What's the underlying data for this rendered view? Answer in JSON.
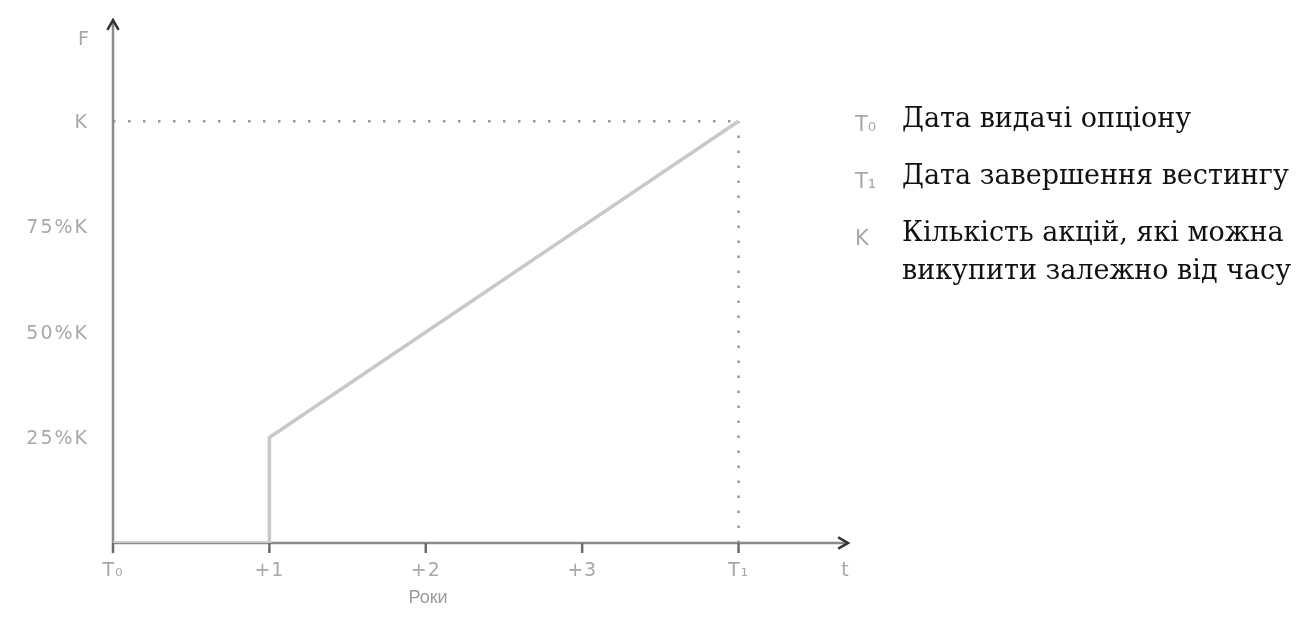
{
  "chart_data": {
    "type": "line",
    "xlabel": "t",
    "ylabel": "F",
    "annotations": [
      "Роки",
      "T₀ Дата видачі опціону",
      "T₁ Дата завершення вестингу",
      "K Кількість акцій, які можна викупити залежно від часу"
    ],
    "x": [
      0,
      1,
      1,
      4
    ],
    "values": [
      0,
      0,
      25,
      100
    ],
    "color": "#c8c8c8",
    "xlim": [
      0,
      4.7
    ],
    "xticks": [
      {
        "value": 0,
        "label": "T₀"
      },
      {
        "value": 1,
        "label": "+1"
      },
      {
        "value": 2,
        "label": "+2"
      },
      {
        "value": 3,
        "label": "+3"
      },
      {
        "value": 4,
        "label": "T₁"
      }
    ],
    "ylim": [
      0,
      124
    ],
    "yticks": [
      {
        "value": 25,
        "label": "25%K"
      },
      {
        "value": 50,
        "label": "50%K"
      },
      {
        "value": 75,
        "label": "75%K"
      },
      {
        "value": 100,
        "label": "K"
      }
    ],
    "ref_lines": [
      {
        "axis": "y",
        "value": 100,
        "color": "#999999",
        "line_style": "dotted"
      },
      {
        "axis": "x",
        "value": 4,
        "color": "#999999",
        "line_style": "dotted"
      }
    ]
  }
}
